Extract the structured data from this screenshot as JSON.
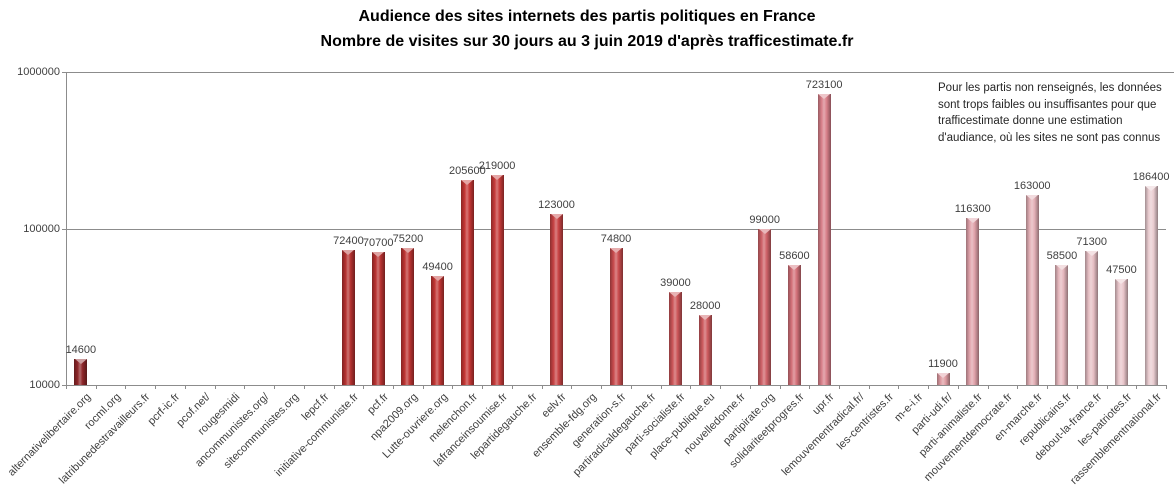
{
  "chart_data": {
    "type": "bar",
    "title": "Audience des sites internets des partis politiques en France",
    "subtitle": "Nombre de visites sur 30 jours au 3 juin 2019 d'après trafficestimate.fr",
    "annotation": "Pour les partis non renseignés, les données sont trops faibles ou insuffisantes pour que trafficestimate donne une estimation d'audiance, où les sites ne sont pas connus",
    "scale": "log10",
    "ylim": [
      10000,
      1000000
    ],
    "yticks": [
      10000,
      100000,
      1000000
    ],
    "grid": "horizontal",
    "legend": "none",
    "note": "null value = site non renseigné (pas de barre)",
    "sites": [
      {
        "label": "alternativelibertaire.org",
        "value": 14600,
        "color": "#8e2629"
      },
      {
        "label": "rocml.org",
        "value": null,
        "color": "#922729"
      },
      {
        "label": "latribunedestravailleurs.fr",
        "value": null,
        "color": "#96282a"
      },
      {
        "label": "pcrf-ic.fr",
        "value": null,
        "color": "#9b2a2b"
      },
      {
        "label": "pcof.net/",
        "value": null,
        "color": "#9f2b2c"
      },
      {
        "label": "rougesmidi",
        "value": null,
        "color": "#a32c2c"
      },
      {
        "label": "ancommunistes.org/",
        "value": null,
        "color": "#a72e2d"
      },
      {
        "label": "sitecommunistes.org",
        "value": null,
        "color": "#ac2f2e"
      },
      {
        "label": "lepcf.fr",
        "value": null,
        "color": "#b0302f"
      },
      {
        "label": "initiative-communiste.fr",
        "value": 72400,
        "color": "#b43130"
      },
      {
        "label": "pcf.fr",
        "value": 70700,
        "color": "#b83231"
      },
      {
        "label": "npa2009.org",
        "value": 75200,
        "color": "#bd3432"
      },
      {
        "label": "Lutte-ouvriere.org",
        "value": 49400,
        "color": "#c13533"
      },
      {
        "label": "melenchon.fr",
        "value": 205600,
        "color": "#c53634"
      },
      {
        "label": "lafranceinsoumise.fr",
        "value": 219000,
        "color": "#c63a39"
      },
      {
        "label": "lepartidegauche.fr",
        "value": null,
        "color": "#c73f3e"
      },
      {
        "label": "eelv.fr",
        "value": 123000,
        "color": "#c84344"
      },
      {
        "label": "ensemble-fdg.org",
        "value": null,
        "color": "#c94849"
      },
      {
        "label": "generation-s.fr",
        "value": 74800,
        "color": "#ca4c4e"
      },
      {
        "label": "partiradicaldegauche.fr",
        "value": null,
        "color": "#cb5153"
      },
      {
        "label": "parti-socialiste.fr",
        "value": 39000,
        "color": "#cc5558"
      },
      {
        "label": "place-publique.eu",
        "value": 28000,
        "color": "#cd5a5e"
      },
      {
        "label": "nouvelledonne.fr",
        "value": null,
        "color": "#ce5e63"
      },
      {
        "label": "partipirate.org",
        "value": 99000,
        "color": "#cf6268"
      },
      {
        "label": "solidariteetprogres.fr",
        "value": 58600,
        "color": "#d47179"
      },
      {
        "label": "upr.fr",
        "value": 723100,
        "color": "#d9808a"
      },
      {
        "label": "lemouvementradical.fr/",
        "value": null,
        "color": "#da8790"
      },
      {
        "label": "les-centristes.fr",
        "value": null,
        "color": "#dc8e97"
      },
      {
        "label": "m-e-i.fr",
        "value": null,
        "color": "#dd959d"
      },
      {
        "label": "parti-udi.fr/",
        "value": 11900,
        "color": "#df9ca3"
      },
      {
        "label": "parti-animaliste.fr",
        "value": 116300,
        "color": "#e0a2aa"
      },
      {
        "label": "mouvementdemocrate.fr",
        "value": null,
        "color": "#e2a9b0"
      },
      {
        "label": "en-marche.fr",
        "value": 163000,
        "color": "#e3b0b6"
      },
      {
        "label": "republicains.fr",
        "value": 58500,
        "color": "#e5b7bd"
      },
      {
        "label": "debout-la-france.fr",
        "value": 71300,
        "color": "#e6bec3"
      },
      {
        "label": "les-patriotes.fr",
        "value": 47500,
        "color": "#e8c5ca"
      },
      {
        "label": "rassemblementnational.fr",
        "value": 186400,
        "color": "#e9ccd0"
      }
    ]
  }
}
